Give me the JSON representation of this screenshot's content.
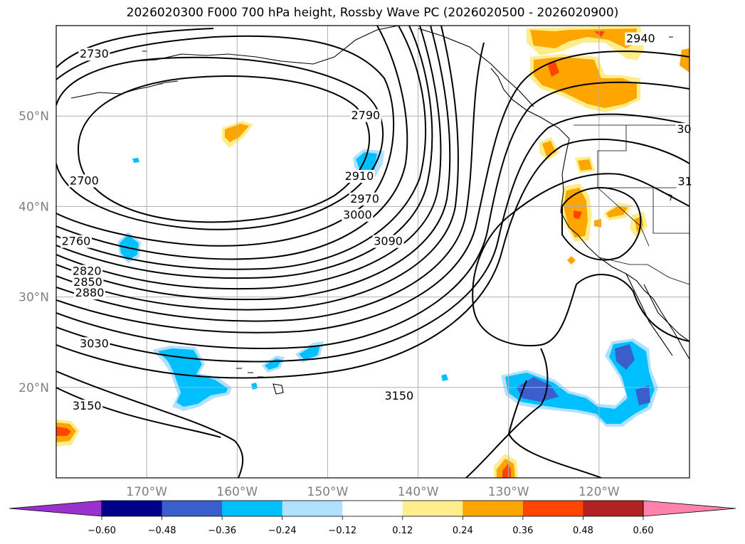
{
  "title": "2026020300 F000 700 hPa height, Rossby Wave PC (2026020500 - 2026020900)",
  "chart_data": {
    "type": "contour",
    "title": "2026020300 F000 700 hPa height, Rossby Wave PC (2026020500 - 2026020900)",
    "xlabel": "",
    "ylabel": "",
    "xlim": [
      -180,
      -110
    ],
    "ylim": [
      10,
      60
    ],
    "grid": true,
    "lon_ticks": [
      -170,
      -160,
      -150,
      -140,
      -130,
      -120
    ],
    "lon_tick_labels": [
      "170°W",
      "160°W",
      "150°W",
      "140°W",
      "130°W",
      "120°W"
    ],
    "lat_ticks": [
      20,
      30,
      40,
      50
    ],
    "lat_tick_labels": [
      "20°N",
      "30°N",
      "40°N",
      "50°N"
    ],
    "contour_labels": [
      {
        "text": "2730",
        "lon": -175.8,
        "lat": 56.6
      },
      {
        "text": "2700",
        "lon": -176.9,
        "lat": 42.6
      },
      {
        "text": "2760",
        "lon": -177.8,
        "lat": 35.9
      },
      {
        "text": "2790",
        "lon": -145.8,
        "lat": 49.8
      },
      {
        "text": "2820",
        "lon": -176.6,
        "lat": 32.6
      },
      {
        "text": "2850",
        "lon": -176.5,
        "lat": 31.4
      },
      {
        "text": "2880",
        "lon": -176.3,
        "lat": 30.2
      },
      {
        "text": "2910",
        "lon": -146.5,
        "lat": 43.1
      },
      {
        "text": "2940",
        "lon": -115.4,
        "lat": 58.3
      },
      {
        "text": "2970",
        "lon": -145.9,
        "lat": 40.6
      },
      {
        "text": "3000",
        "lon": -146.7,
        "lat": 38.8
      },
      {
        "text": "3030",
        "lon": -175.8,
        "lat": 24.6
      },
      {
        "text": "3090",
        "lon": -143.3,
        "lat": 35.9
      },
      {
        "text": "3150",
        "lon": -176.6,
        "lat": 17.7
      },
      {
        "text": "3150",
        "lon": -142.1,
        "lat": 18.8
      },
      {
        "text": "30",
        "lon": -110.6,
        "lat": 48.3
      },
      {
        "text": "31",
        "lon": -110.5,
        "lat": 42.5
      }
    ],
    "colorbar": {
      "levels": [
        -0.6,
        -0.48,
        -0.36,
        -0.24,
        -0.12,
        0.12,
        0.24,
        0.36,
        0.48,
        0.6
      ],
      "tick_labels": [
        "−0.60",
        "−0.48",
        "−0.36",
        "−0.24",
        "−0.12",
        "0.12",
        "0.24",
        "0.36",
        "0.48",
        "0.60"
      ],
      "colors": [
        "#9932cc",
        "#00008b",
        "#3a5fcd",
        "#00bfff",
        "#b0e2ff",
        "#ffffff",
        "#ffec8b",
        "#ffa500",
        "#ff4500",
        "#b22222",
        "#ff82ab"
      ],
      "extend": "both"
    },
    "colors": {
      "contour": "#000000",
      "grid": "#b0b0b0",
      "coastline": "#000000"
    }
  }
}
